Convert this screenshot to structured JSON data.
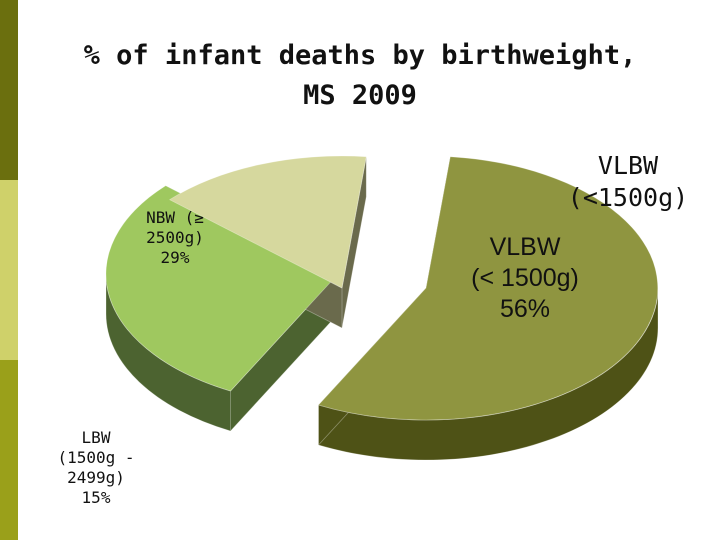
{
  "colors": {
    "sidebar_top": "#6b6f0e",
    "sidebar_mid": "#cfd16a",
    "sidebar_bottom": "#9aa01a",
    "vlbw_top": "#8f9540",
    "vlbw_side": "#4e5216",
    "nbw_top": "#9fc85f",
    "nbw_side": "#4c6330",
    "lbw_top": "#d6d89e",
    "lbw_side": "#6a6a4c"
  },
  "chart_data": {
    "type": "pie",
    "title": "% of infant deaths by birthweight, MS 2009",
    "title_lines": [
      "% of infant deaths by birthweight,",
      "MS 2009"
    ],
    "style": "3d-exploded",
    "slices": [
      {
        "name": "VLBW (< 1500g)",
        "value": 56,
        "color": "#8f9540"
      },
      {
        "name": "NBW (≥ 2500g)",
        "value": 29,
        "color": "#9fc85f"
      },
      {
        "name": "LBW (1500g - 2499g)",
        "value": 15,
        "color": "#d6d89e"
      }
    ],
    "labels": {
      "vlbw_lines": [
        "VLBW",
        "(< 1500g)",
        "56%"
      ],
      "nbw_lines": [
        "NBW (≥",
        "2500g)",
        "29%"
      ],
      "lbw_lines": [
        "LBW",
        "(1500g -",
        "2499g)",
        "15%"
      ],
      "vlbw_outside_lines": [
        "VLBW",
        "(<1500g)"
      ]
    }
  }
}
